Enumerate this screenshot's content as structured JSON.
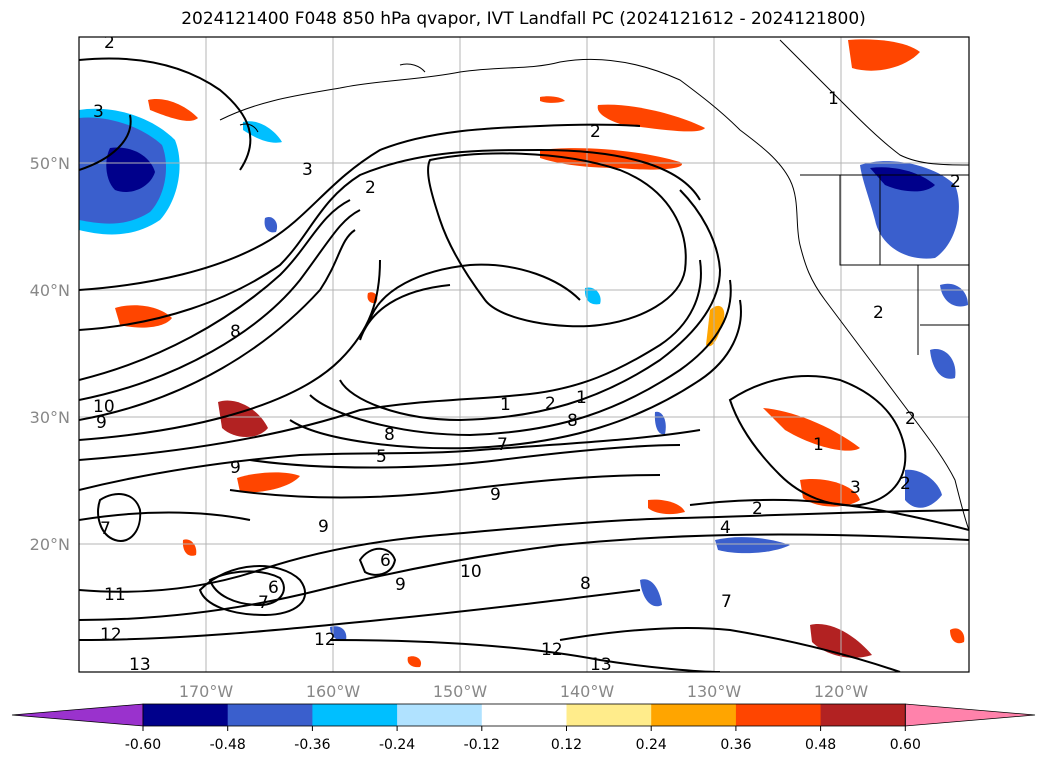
{
  "title": "2024121400 F048 850 hPa qvapor, IVT Landfall PC (2024121612 - 2024121800)",
  "lat_labels": [
    "50°N",
    "40°N",
    "30°N",
    "20°N"
  ],
  "lon_labels": [
    "170°W",
    "160°W",
    "150°W",
    "140°W",
    "130°W",
    "120°W"
  ],
  "contour_labels": [
    "2",
    "3",
    "3",
    "2",
    "2",
    "1",
    "1",
    "2",
    "2",
    "8",
    "10",
    "9",
    "8",
    "5",
    "7",
    "8",
    "1",
    "9",
    "9",
    "7",
    "9",
    "11",
    "12",
    "12",
    "13",
    "10",
    "9",
    "2",
    "4",
    "8",
    "7",
    "12",
    "13",
    "1",
    "3",
    "2",
    "2",
    "2",
    "6",
    "7",
    "6"
  ],
  "colorbar": {
    "ticks": [
      "-0.60",
      "-0.48",
      "-0.36",
      "-0.24",
      "-0.12",
      "0.12",
      "0.24",
      "0.36",
      "0.48",
      "0.60"
    ],
    "colors": [
      "#9a32cd",
      "#00008b",
      "#3a5fcd",
      "#00bfff",
      "#b0e2ff",
      "#ffffff",
      "#ffec8b",
      "#ffa500",
      "#ff4500",
      "#b22222",
      "#ff82ab"
    ]
  },
  "style": {
    "positive_colors": [
      "#ffec8b",
      "#ffa500",
      "#ff4500",
      "#b22222"
    ],
    "negative_colors": [
      "#b0e2ff",
      "#00bfff",
      "#3a5fcd",
      "#00008b"
    ],
    "contour_color": "#000000",
    "grid_color": "#b4b4b4",
    "coast_color": "#000000"
  }
}
